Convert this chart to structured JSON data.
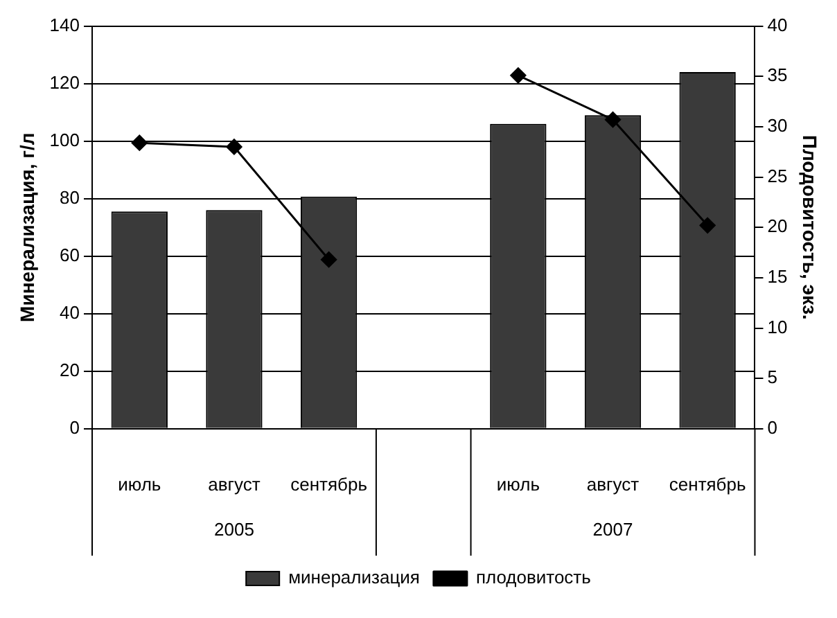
{
  "chart_data": {
    "type": "bar",
    "ylabel": "Минерализация, г/л",
    "y2label": "Плодовитость, экз.",
    "categories": [
      "июль",
      "август",
      "сентябрь",
      null,
      "июль",
      "август",
      "сентябрь"
    ],
    "series": [
      {
        "name": "минерализация",
        "color": "#3a3a3a",
        "values": [
          75.5,
          76,
          80.7,
          null,
          106,
          109,
          124
        ]
      },
      {
        "name": "плодовитость",
        "type": "line",
        "axis": "y2",
        "color": "#000000",
        "marker": "diamond",
        "values": [
          28.4,
          28,
          16.8,
          null,
          35.1,
          30.7,
          20.2
        ]
      }
    ],
    "ylim": [
      0,
      140
    ],
    "yticks": [
      0,
      20,
      40,
      60,
      80,
      100,
      120,
      140
    ],
    "y2lim": [
      0,
      40
    ],
    "y2ticks": [
      0,
      5,
      10,
      15,
      20,
      25,
      30,
      35,
      40
    ],
    "annotations": [
      "2005",
      "2007"
    ],
    "grid": "y",
    "legend": "bottom"
  }
}
